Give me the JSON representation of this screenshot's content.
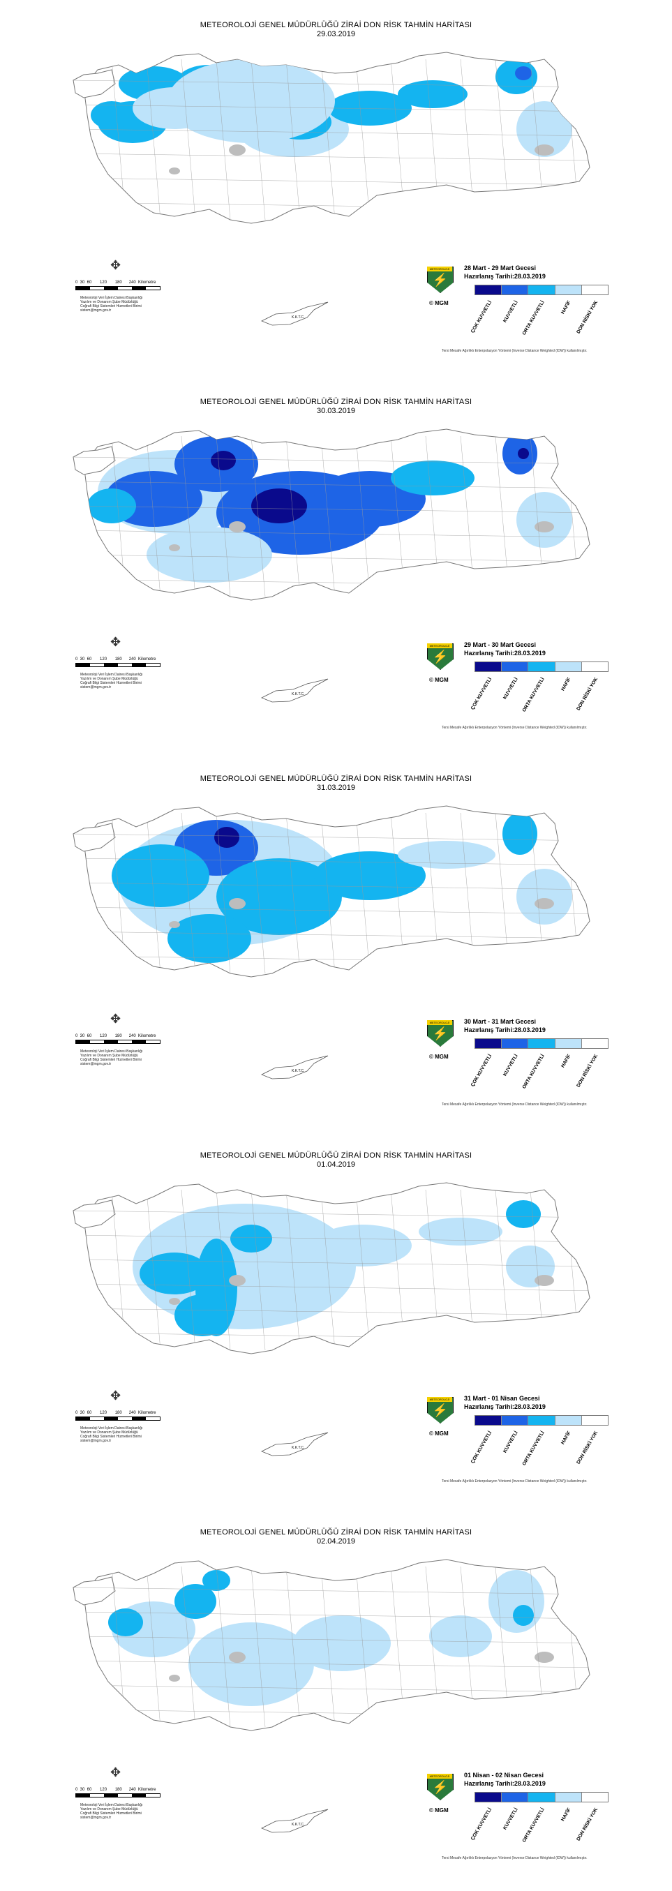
{
  "colors": {
    "cok_kuvvetli": "#0a0a8c",
    "kuvvetli": "#1e64e6",
    "orta_kuvvetli": "#14b4f0",
    "hafif": "#bde3fa",
    "don_riski_yok": "#ffffff",
    "lakes": "#bdbdbd",
    "borders": "#777777"
  },
  "common": {
    "title": "METEOROLOJİ GENEL MÜDÜRLÜĞÜ ZİRAİ DON RİSK TAHMİN HARİTASI",
    "scale_ticks": "0  30  60       120       180      240",
    "scale_unit": "Kilometre",
    "credit_lines": [
      "Meteoroloji Veri İşlem Dairesi Başkanlığı",
      "Yazılım ve Donanım Şube Müdürlüğü",
      "Coğrafi Bilgi Sistemleri Hizmetleri Birimi",
      "sistem@mgm.gov.tr"
    ],
    "logo_text": "METEOROLOJİ",
    "mgm_label": "© MGM",
    "prepared": "Hazırlanış Tarihi:28.03.2019",
    "legend_labels": [
      "ÇOK KUVVETLİ",
      "KUVVETLİ",
      "ORTA KUVVETLİ",
      "HAFİF",
      "DON RİSKİ YOK"
    ],
    "note": "Tersi Mesafe Ağırlıklı Enterpolasyon Yöntemi (Inverse Distance Weighted (IDW)) kullanılmıştır.",
    "cyprus_label": "K.K.T.C."
  },
  "panels": [
    {
      "date": "29.03.2019",
      "period": "28 Mart - 29 Mart Gecesi",
      "coverage": "moderate"
    },
    {
      "date": "30.03.2019",
      "period": "29 Mart - 30 Mart Gecesi",
      "coverage": "strong"
    },
    {
      "date": "31.03.2019",
      "period": "30 Mart - 31 Mart Gecesi",
      "coverage": "moderate-wide"
    },
    {
      "date": "01.04.2019",
      "period": "31 Mart - 01 Nisan Gecesi",
      "coverage": "light"
    },
    {
      "date": "02.04.2019",
      "period": "01 Nisan - 02 Nisan Gecesi",
      "coverage": "scattered"
    }
  ]
}
